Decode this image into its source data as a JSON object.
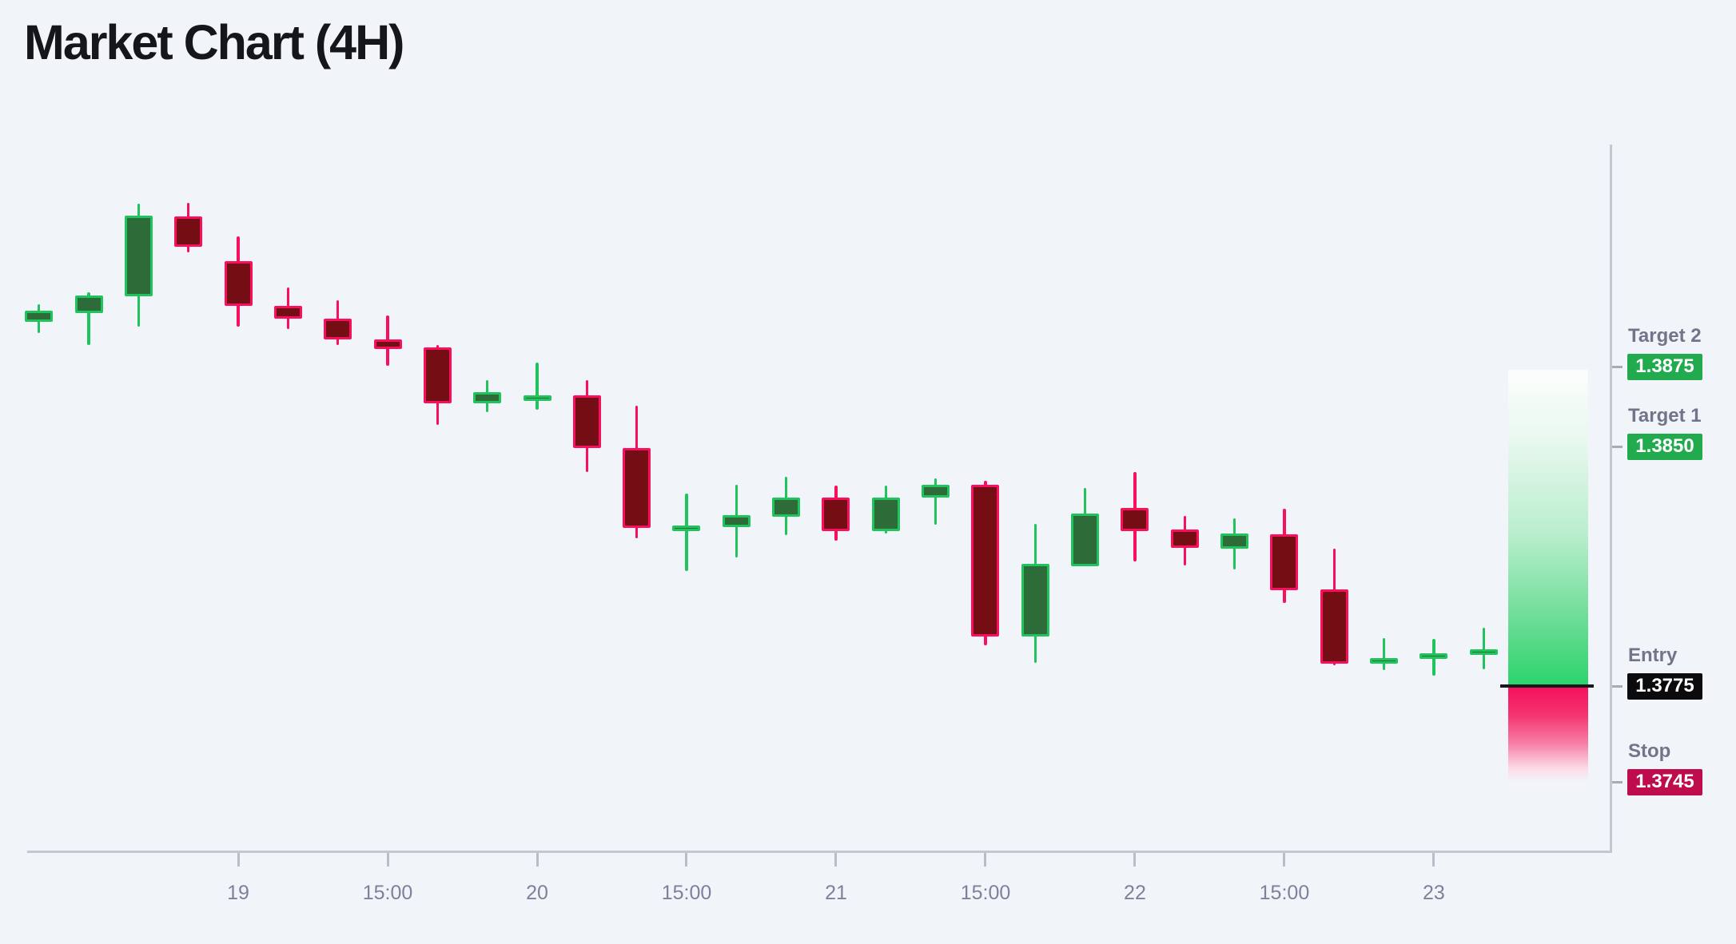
{
  "title": "Market Chart (4H)",
  "colors": {
    "background": "#f1f4f9",
    "bullish_body": "#2d6b39",
    "bullish_outline": "#21c35d",
    "bearish_body": "#750d15",
    "bearish_outline": "#f8105c",
    "axis_line": "#c3c7cf",
    "tick_mark": "#b9bdc7",
    "tick_label": "#7d819b",
    "level_label": "#71758a",
    "badge_target": "#21ab4e",
    "badge_entry": "#0b0b0d",
    "badge_stop": "#bf0c4d",
    "entry_line": "#17181c",
    "zone_green": "#2bd46a",
    "zone_pink": "#f50f5c"
  },
  "levels": [
    {
      "id": "target2",
      "label": "Target 2",
      "value": "1.3875",
      "price": 1.3875,
      "badge": "target"
    },
    {
      "id": "target1",
      "label": "Target 1",
      "value": "1.3850",
      "price": 1.385,
      "badge": "target"
    },
    {
      "id": "entry",
      "label": "Entry",
      "value": "1.3775",
      "price": 1.3775,
      "badge": "entry"
    },
    {
      "id": "stop",
      "label": "Stop",
      "value": "1.3745",
      "price": 1.3745,
      "badge": "stop"
    }
  ],
  "trade_zone": {
    "top_price": 1.3874,
    "entry_price": 1.3775,
    "stop_price": 1.3745
  },
  "chart_data": {
    "type": "candlestick",
    "title": "Market Chart (4H)",
    "timeframe": "4H",
    "grid": false,
    "x_axis": {
      "tick_labels": [
        "19",
        "15:00",
        "20",
        "15:00",
        "21",
        "15:00",
        "22",
        "15:00",
        "23"
      ],
      "tick_candle_indices": [
        4,
        7,
        10,
        13,
        16,
        19,
        22,
        25,
        28
      ]
    },
    "y_axis": {
      "visible_price_range": [
        1.3725,
        1.3935
      ],
      "labels_shown": [
        "1.3875",
        "1.3850",
        "1.3775",
        "1.3745"
      ]
    },
    "annotations": {
      "target_2": 1.3875,
      "target_1": 1.385,
      "entry": 1.3775,
      "stop": 1.3745
    },
    "candles": [
      {
        "open": 1.3889,
        "high": 1.38945,
        "low": 1.38855,
        "close": 1.38925
      },
      {
        "open": 1.38918,
        "high": 1.38983,
        "low": 1.38818,
        "close": 1.38973
      },
      {
        "open": 1.3897,
        "high": 1.3926,
        "low": 1.38875,
        "close": 1.39223
      },
      {
        "open": 1.3922,
        "high": 1.39263,
        "low": 1.39108,
        "close": 1.39125
      },
      {
        "open": 1.3908,
        "high": 1.39158,
        "low": 1.38875,
        "close": 1.3894
      },
      {
        "open": 1.3894,
        "high": 1.38998,
        "low": 1.38868,
        "close": 1.389
      },
      {
        "open": 1.389,
        "high": 1.38958,
        "low": 1.38818,
        "close": 1.38835
      },
      {
        "open": 1.38835,
        "high": 1.3891,
        "low": 1.38753,
        "close": 1.38805
      },
      {
        "open": 1.3881,
        "high": 1.38818,
        "low": 1.38568,
        "close": 1.38635
      },
      {
        "open": 1.38635,
        "high": 1.38708,
        "low": 1.38608,
        "close": 1.3867
      },
      {
        "open": 1.38648,
        "high": 1.38763,
        "low": 1.38615,
        "close": 1.3866
      },
      {
        "open": 1.3866,
        "high": 1.38708,
        "low": 1.3842,
        "close": 1.38495
      },
      {
        "open": 1.38495,
        "high": 1.38628,
        "low": 1.38213,
        "close": 1.38245
      },
      {
        "open": 1.38243,
        "high": 1.38353,
        "low": 1.3811,
        "close": 1.38253
      },
      {
        "open": 1.38248,
        "high": 1.3838,
        "low": 1.38153,
        "close": 1.38285
      },
      {
        "open": 1.3828,
        "high": 1.38405,
        "low": 1.38223,
        "close": 1.3834
      },
      {
        "open": 1.3834,
        "high": 1.38378,
        "low": 1.38205,
        "close": 1.38235
      },
      {
        "open": 1.38235,
        "high": 1.38378,
        "low": 1.38228,
        "close": 1.3834
      },
      {
        "open": 1.3834,
        "high": 1.384,
        "low": 1.38255,
        "close": 1.3838
      },
      {
        "open": 1.3838,
        "high": 1.38393,
        "low": 1.37878,
        "close": 1.37905
      },
      {
        "open": 1.37905,
        "high": 1.38258,
        "low": 1.37823,
        "close": 1.38133
      },
      {
        "open": 1.38125,
        "high": 1.3837,
        "low": 1.38125,
        "close": 1.3829
      },
      {
        "open": 1.38308,
        "high": 1.3842,
        "low": 1.3814,
        "close": 1.38235
      },
      {
        "open": 1.3824,
        "high": 1.38283,
        "low": 1.38128,
        "close": 1.38183
      },
      {
        "open": 1.3818,
        "high": 1.38275,
        "low": 1.38115,
        "close": 1.38228
      },
      {
        "open": 1.38225,
        "high": 1.38305,
        "low": 1.3801,
        "close": 1.3805
      },
      {
        "open": 1.38053,
        "high": 1.3818,
        "low": 1.37815,
        "close": 1.3782
      },
      {
        "open": 1.37823,
        "high": 1.379,
        "low": 1.378,
        "close": 1.37838
      },
      {
        "open": 1.3784,
        "high": 1.37898,
        "low": 1.37783,
        "close": 1.37853
      },
      {
        "open": 1.3785,
        "high": 1.37933,
        "low": 1.37803,
        "close": 1.37865
      }
    ]
  }
}
